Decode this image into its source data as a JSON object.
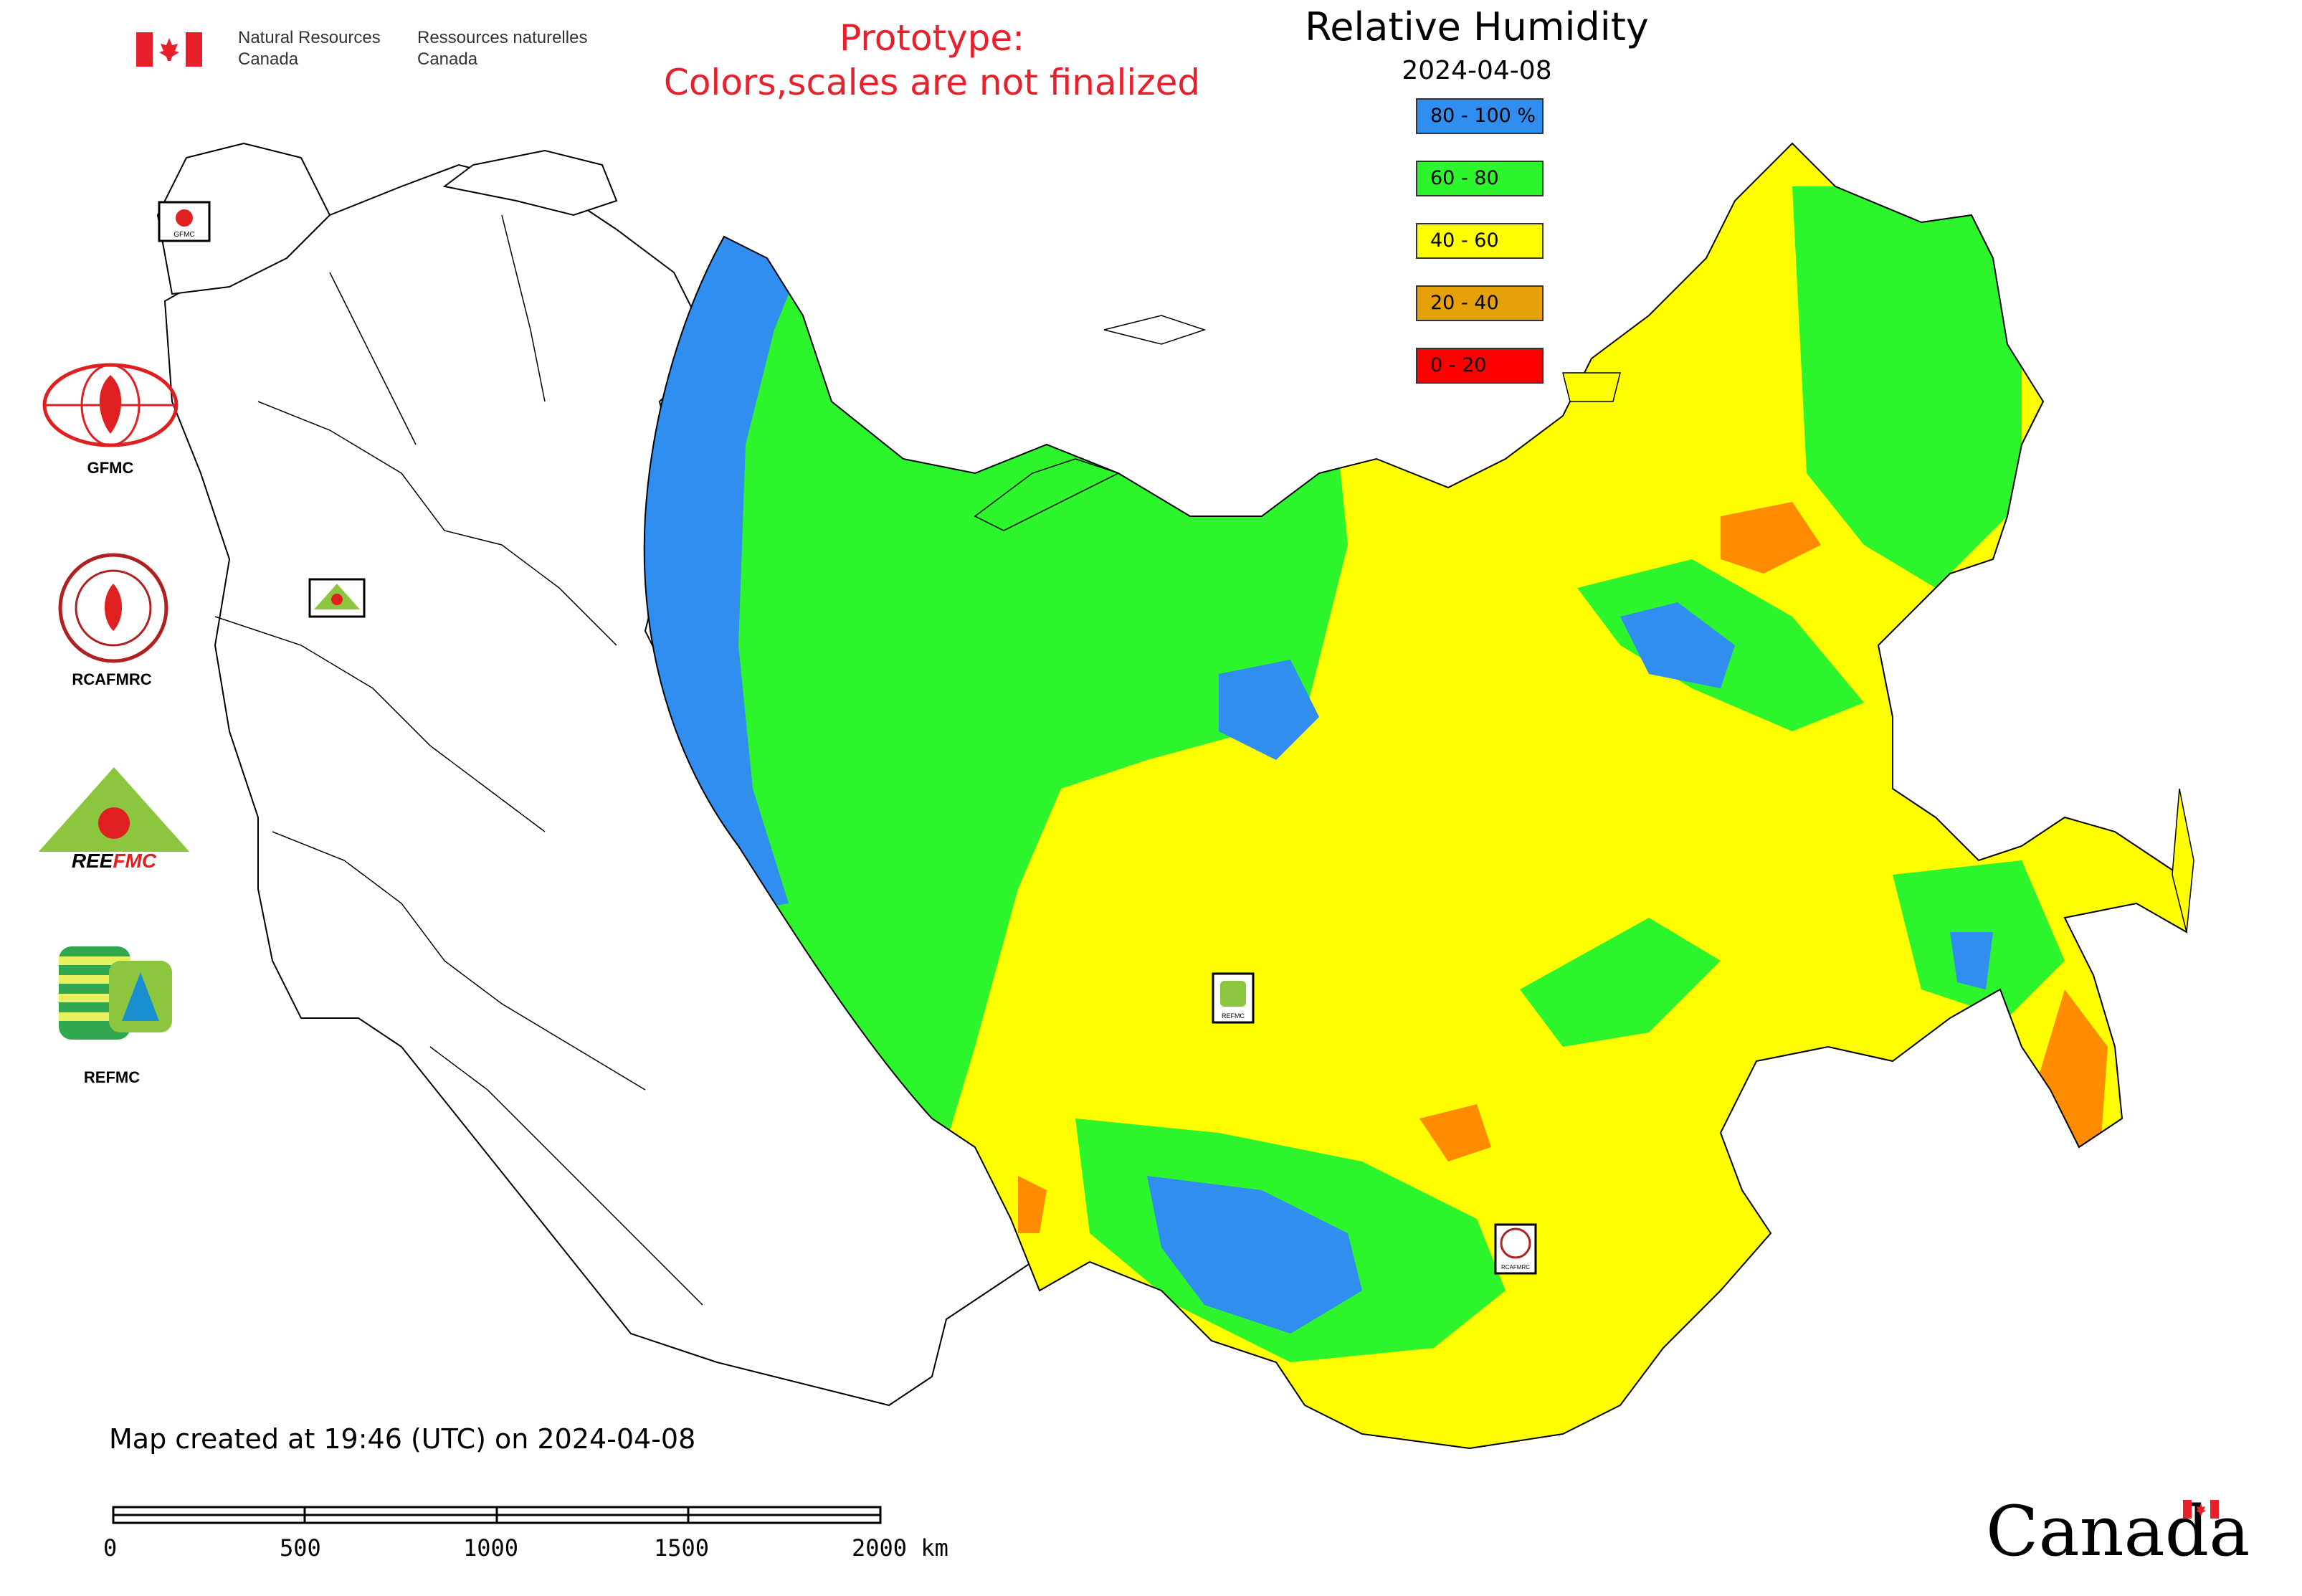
{
  "header": {
    "department_en_line1": "Natural Resources",
    "department_en_line2": "Canada",
    "department_fr_line1": "Ressources naturelles",
    "department_fr_line2": "Canada",
    "prototype_line1": "Prototype:",
    "prototype_line2": "Colors,scales are not finalized"
  },
  "map": {
    "title": "Relative Humidity",
    "date": "2024-04-08",
    "created_text": "Map created at 19:46 (UTC) on 2024-04-08",
    "wordmark": "Canada"
  },
  "legend": [
    {
      "label": "80 - 100 %",
      "color": "#2f8ef0"
    },
    {
      "label": "60 - 80",
      "color": "#2cf52c"
    },
    {
      "label": "40 - 60",
      "color": "#ffff00"
    },
    {
      "label": "20 - 40",
      "color": "#e5a00a"
    },
    {
      "label": "0 - 20",
      "color": "#ff0000"
    }
  ],
  "side_logos": [
    {
      "label": "GFMC",
      "icon": "gfmc-logo"
    },
    {
      "label": "RCAFMRC",
      "icon": "rcafmrc-logo"
    },
    {
      "label": "",
      "icon": "reefmc-logo"
    },
    {
      "label": "REFMC",
      "icon": "refmc-logo"
    }
  ],
  "map_markers": [
    {
      "label": "GFMC",
      "icon": "gfmc-marker"
    },
    {
      "label": "REEFMC",
      "icon": "reefmc-marker"
    },
    {
      "label": "REFMC",
      "icon": "refmc-marker"
    },
    {
      "label": "RCAFMRC",
      "icon": "rcafmrc-marker"
    }
  ],
  "scale_bar": {
    "ticks": [
      "0",
      "500",
      "1000",
      "1500",
      "2000 km"
    ]
  }
}
